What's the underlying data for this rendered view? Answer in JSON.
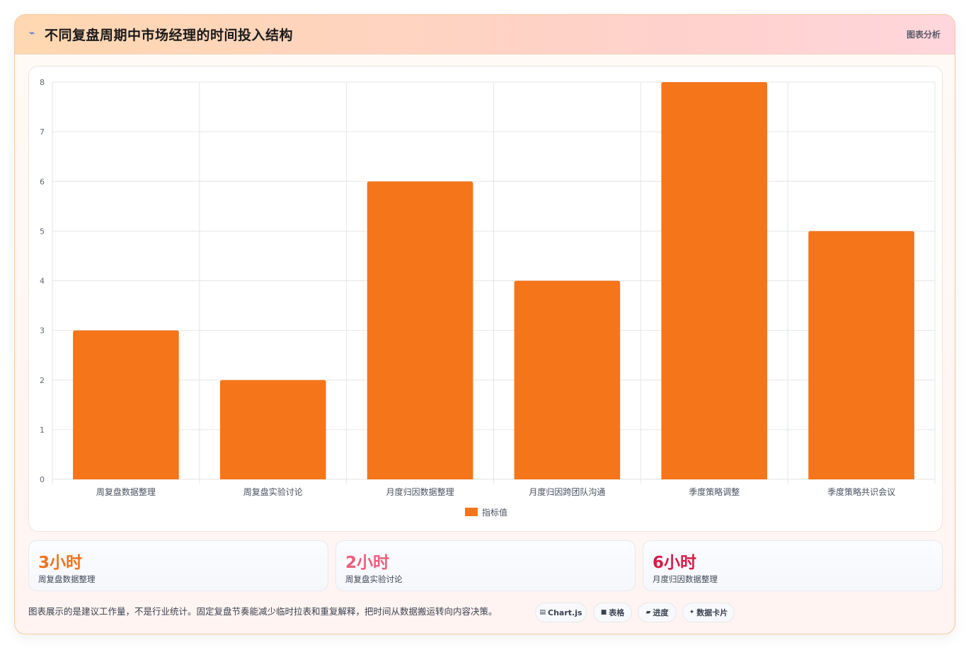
{
  "header": {
    "title": "不同复盘周期中市场经理的时间投入结构",
    "tag": "图表分析"
  },
  "chart_data": {
    "type": "bar",
    "categories": [
      "周复盘数据整理",
      "周复盘实验讨论",
      "月度归因数据整理",
      "月度归因跨团队沟通",
      "季度策略调整",
      "季度策略共识会议"
    ],
    "series": [
      {
        "name": "指标值",
        "values": [
          3,
          2,
          6,
          4,
          8,
          5
        ],
        "color": "#f5751a"
      }
    ],
    "ylim": [
      0,
      8
    ],
    "yticks": [
      0,
      1,
      2,
      3,
      4,
      5,
      6,
      7,
      8
    ],
    "grid": true,
    "legend": "bottom",
    "xlabel": "",
    "ylabel": ""
  },
  "stats": [
    {
      "value": "3小时",
      "label": "周复盘数据整理",
      "color": "#f0731c"
    },
    {
      "value": "2小时",
      "label": "周复盘实验讨论",
      "color": "#f25c7a"
    },
    {
      "value": "6小时",
      "label": "月度归因数据整理",
      "color": "#d81b47"
    }
  ],
  "note": "图表展示的是建议工作量，不是行业统计。固定复盘节奏能减少临时拉表和重复解释，把时间从数据搬运转向内容决策。",
  "pills": [
    {
      "icon": "chart-icon",
      "glyph": "▤",
      "label": "Chart.js"
    },
    {
      "icon": "table-icon",
      "glyph": "■",
      "label": "表格"
    },
    {
      "icon": "progress-icon",
      "glyph": "▰",
      "label": "进度"
    },
    {
      "icon": "card-icon",
      "glyph": "✦",
      "label": "数据卡片"
    }
  ]
}
